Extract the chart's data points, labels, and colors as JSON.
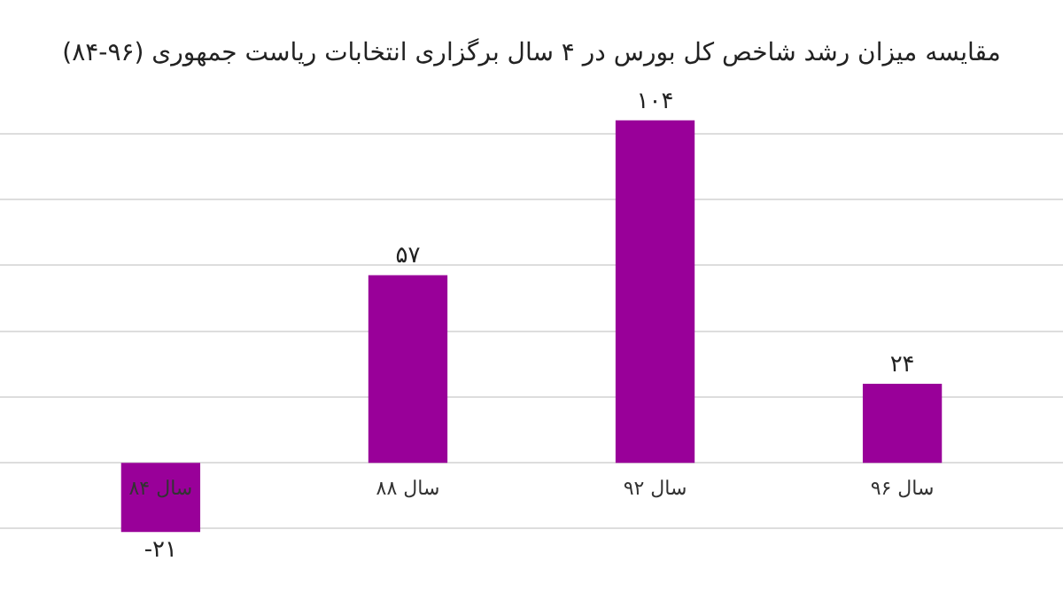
{
  "chart_data": {
    "type": "bar",
    "title": "مقایسه میزان رشد شاخص کل بورس در ۴ سال برگزاری انتخابات ریاست جمهوری (۹۶-۸۴)",
    "categories": [
      "سال ۸۴",
      "سال ۸۸",
      "سال ۹۲",
      "سال ۹۶"
    ],
    "values": [
      -21,
      57,
      104,
      24
    ],
    "value_labels": [
      "-۲۱",
      "۵۷",
      "۱۰۴",
      "۲۴"
    ],
    "color": "#990099",
    "grid": "y",
    "tick_labels": "x"
  }
}
